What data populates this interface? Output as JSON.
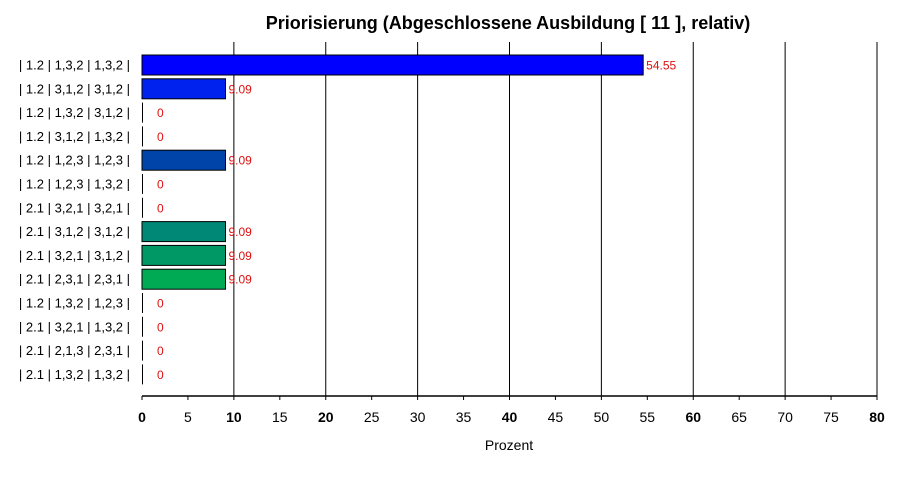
{
  "chart_data": {
    "type": "bar",
    "orientation": "horizontal",
    "title": "Priorisierung (Abgeschlossene Ausbildung [ 11 ], relativ)",
    "xlabel": "Prozent",
    "ylabel": "",
    "xlim": [
      0,
      80
    ],
    "xticks": [
      0,
      5,
      10,
      15,
      20,
      25,
      30,
      35,
      40,
      45,
      50,
      55,
      60,
      65,
      70,
      75,
      80
    ],
    "xticks_bold": [
      0,
      10,
      20,
      40,
      60,
      80
    ],
    "grid": "vertical lines at every 10",
    "categories": [
      "| 1.2 | 1,3,2 | 1,3,2 |",
      "| 1.2 | 3,1,2 | 3,1,2 |",
      "| 1.2 | 1,3,2 | 3,1,2 |",
      "| 1.2 | 3,1,2 | 1,3,2 |",
      "| 1.2 | 1,2,3 | 1,2,3 |",
      "| 1.2 | 1,2,3 | 1,3,2 |",
      "| 2.1 | 3,2,1 | 3,2,1 |",
      "| 2.1 | 3,1,2 | 3,1,2 |",
      "| 2.1 | 3,2,1 | 3,1,2 |",
      "| 2.1 | 2,3,1 | 2,3,1 |",
      "| 1.2 | 1,3,2 | 1,2,3 |",
      "| 2.1 | 3,2,1 | 1,3,2 |",
      "| 2.1 | 2,1,3 | 2,3,1 |",
      "| 2.1 | 1,3,2 | 1,3,2 |"
    ],
    "values": [
      54.55,
      9.09,
      0,
      0,
      9.09,
      0,
      0,
      9.09,
      9.09,
      9.09,
      0,
      0,
      0,
      0
    ],
    "value_labels": [
      "54.55",
      "9.09",
      "0",
      "0",
      "9.09",
      "0",
      "0",
      "9.09",
      "9.09",
      "9.09",
      "0",
      "0",
      "0",
      "0"
    ],
    "colors": [
      "#0000ff",
      "#0022ee",
      "#0000ff",
      "#0000ff",
      "#0044aa",
      "#0000ff",
      "#0000ff",
      "#008877",
      "#009966",
      "#00aa55",
      "#0000ff",
      "#0000ff",
      "#0000ff",
      "#0000ff"
    ],
    "value_label_color": "#dd1111"
  }
}
